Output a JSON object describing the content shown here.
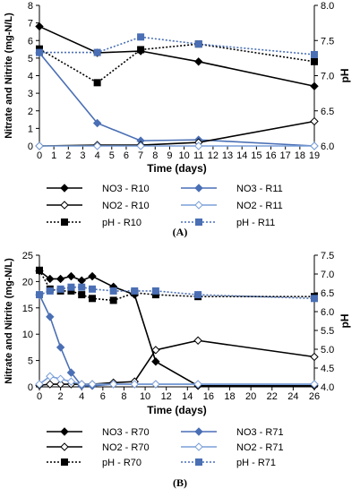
{
  "panel_labels": [
    "(A)",
    "(B)"
  ],
  "chart_data": [
    {
      "type": "line",
      "panel": "(A)",
      "xlabel": "Time (days)",
      "ylabel": "Nitrate and Nitrite (mg-N/L)",
      "y2label": "pH",
      "xlim": [
        0,
        19
      ],
      "xticks": [
        "0",
        "1",
        "2",
        "3",
        "4",
        "5",
        "6",
        "7",
        "8",
        "9",
        "10",
        "11",
        "12",
        "13",
        "14",
        "15",
        "16",
        "17",
        "18",
        "19"
      ],
      "ylim": [
        0,
        8
      ],
      "yticks": [
        "0",
        "1",
        "2",
        "3",
        "4",
        "5",
        "6",
        "7",
        "8"
      ],
      "y2lim": [
        6.0,
        8.0
      ],
      "y2ticks": [
        "6.0",
        "6.5",
        "7.0",
        "7.5",
        "8.0"
      ],
      "grid": false,
      "legend_position": "below",
      "series": [
        {
          "name": "NO3 - R10",
          "axis": "left",
          "color": "#000000",
          "dash": "solid",
          "marker": "diamond-filled",
          "x": [
            0,
            4,
            7,
            11,
            19
          ],
          "y": [
            6.8,
            5.3,
            5.4,
            4.8,
            3.4
          ]
        },
        {
          "name": "NO3 - R11",
          "axis": "left",
          "color": "#4a6fb5",
          "dash": "solid",
          "marker": "diamond-filled",
          "x": [
            0,
            4,
            7,
            11,
            19
          ],
          "y": [
            5.3,
            1.3,
            0.3,
            0.35,
            0.0
          ]
        },
        {
          "name": "NO2 - R10",
          "axis": "left",
          "color": "#000000",
          "dash": "solid",
          "marker": "diamond-open",
          "x": [
            0,
            4,
            7,
            11,
            19
          ],
          "y": [
            0.0,
            0.05,
            0.05,
            0.2,
            1.4
          ]
        },
        {
          "name": "NO2 - R11",
          "axis": "left",
          "color": "#7b9fd8",
          "dash": "solid",
          "marker": "diamond-open",
          "x": [
            0,
            4,
            7,
            11,
            19
          ],
          "y": [
            0.0,
            0.0,
            0.0,
            0.0,
            0.0
          ]
        },
        {
          "name": "pH - R10",
          "axis": "right",
          "color": "#000000",
          "dash": "dotted",
          "marker": "square-filled",
          "x": [
            0,
            4,
            7,
            11,
            19
          ],
          "y": [
            7.38,
            6.9,
            7.37,
            7.45,
            7.2
          ]
        },
        {
          "name": "pH - R11",
          "axis": "right",
          "color": "#4a6fb5",
          "dash": "dotted",
          "marker": "square-filled",
          "x": [
            0,
            4,
            7,
            11,
            19
          ],
          "y": [
            7.33,
            7.33,
            7.55,
            7.45,
            7.3
          ]
        }
      ]
    },
    {
      "type": "line",
      "panel": "(B)",
      "xlabel": "Time (days)",
      "ylabel": "Nitrate and Nitrite (mg-N/L)",
      "y2label": "pH",
      "xlim": [
        0,
        26
      ],
      "xticks": [
        "0",
        "2",
        "4",
        "6",
        "8",
        "10",
        "12",
        "14",
        "16",
        "18",
        "20",
        "22",
        "24",
        "26"
      ],
      "ylim": [
        0,
        25
      ],
      "yticks": [
        "0",
        "5",
        "10",
        "15",
        "20",
        "25"
      ],
      "y2lim": [
        4.0,
        7.5
      ],
      "y2ticks": [
        "4.0",
        "4.5",
        "5.0",
        "5.5",
        "6.0",
        "6.5",
        "7.0",
        "7.5"
      ],
      "grid": false,
      "legend_position": "below",
      "series": [
        {
          "name": "NO3 - R70",
          "axis": "left",
          "color": "#000000",
          "dash": "solid",
          "marker": "diamond-filled",
          "x": [
            0,
            1,
            2,
            3,
            4,
            5,
            7,
            9,
            11,
            15,
            26
          ],
          "y": [
            22,
            20.5,
            20.5,
            21,
            20.2,
            21,
            19,
            17.5,
            4.8,
            0.2,
            0.2
          ]
        },
        {
          "name": "NO3 - R71",
          "axis": "left",
          "color": "#4a6fb5",
          "dash": "solid",
          "marker": "diamond-filled",
          "x": [
            0,
            1,
            2,
            3,
            4,
            5,
            7,
            9,
            11,
            15,
            26
          ],
          "y": [
            17.5,
            13.3,
            7.5,
            2.7,
            0.2,
            0.2,
            0.5,
            0.5,
            0.5,
            0.5,
            0.5
          ]
        },
        {
          "name": "NO2 - R70",
          "axis": "left",
          "color": "#000000",
          "dash": "solid",
          "marker": "diamond-open",
          "x": [
            0,
            1,
            2,
            3,
            4,
            5,
            7,
            9,
            11,
            15,
            26
          ],
          "y": [
            0.3,
            0.5,
            0.5,
            0.5,
            0.5,
            0.5,
            0.8,
            1.0,
            7.0,
            8.8,
            5.7
          ]
        },
        {
          "name": "NO2 - R71",
          "axis": "left",
          "color": "#7b9fd8",
          "dash": "solid",
          "marker": "diamond-open",
          "x": [
            0,
            1,
            2,
            3,
            4,
            5,
            7,
            9,
            11,
            15,
            26
          ],
          "y": [
            0.5,
            2.0,
            1.5,
            1.0,
            0.5,
            0.5,
            0.5,
            0.5,
            0.5,
            0.5,
            0.5
          ]
        },
        {
          "name": "pH - R70",
          "axis": "right",
          "color": "#000000",
          "dash": "dotted",
          "marker": "square-filled",
          "x": [
            0,
            1,
            2,
            3,
            4,
            5,
            7,
            9,
            11,
            15,
            26
          ],
          "y": [
            7.1,
            6.6,
            6.55,
            6.55,
            6.45,
            6.35,
            6.3,
            6.5,
            6.45,
            6.4,
            6.4
          ]
        },
        {
          "name": "pH - R71",
          "axis": "right",
          "color": "#4a6fb5",
          "dash": "dotted",
          "marker": "square-filled",
          "x": [
            0,
            1,
            2,
            3,
            4,
            5,
            7,
            9,
            11,
            15,
            26
          ],
          "y": [
            6.45,
            6.55,
            6.6,
            6.65,
            6.65,
            6.6,
            6.55,
            6.55,
            6.55,
            6.45,
            6.35
          ]
        }
      ]
    }
  ]
}
